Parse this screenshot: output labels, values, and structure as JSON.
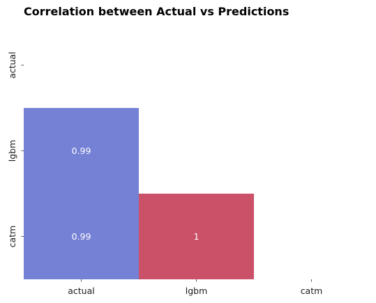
{
  "chart_data": {
    "type": "heatmap",
    "title": "Correlation between Actual vs Predictions",
    "xlabel": "",
    "ylabel": "",
    "x_categories": [
      "actual",
      "lgbm",
      "catm"
    ],
    "y_categories": [
      "actual",
      "lgbm",
      "catm"
    ],
    "mask": "upper-triangle-including-diagonal",
    "cells": [
      {
        "row": "lgbm",
        "col": "actual",
        "value": 0.99,
        "label": "0.99",
        "color": "#7581d4"
      },
      {
        "row": "catm",
        "col": "actual",
        "value": 0.99,
        "label": "0.99",
        "color": "#7581d4"
      },
      {
        "row": "catm",
        "col": "lgbm",
        "value": 1,
        "label": "1",
        "color": "#ca5168"
      }
    ],
    "colorbar": false,
    "grid": false
  }
}
